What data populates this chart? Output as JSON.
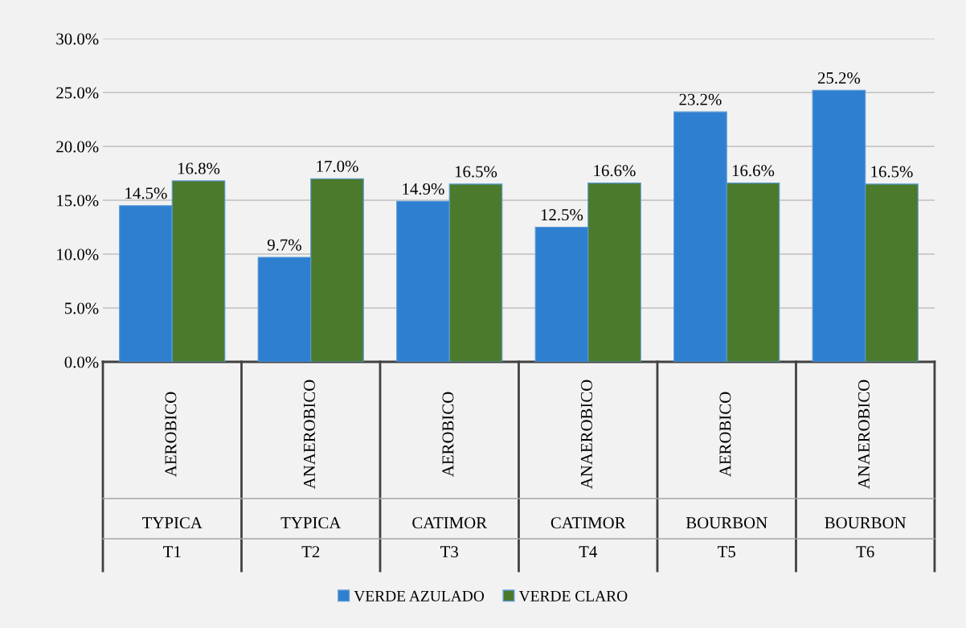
{
  "chart_data": {
    "type": "bar",
    "categories": [
      "AEROBICO\nTYPICA\nT1",
      "ANAEROBICO\nTYPICA\nT2",
      "AEROBICO\nCATIMOR\nT3",
      "ANAEROBICO\nCATIMOR\nT4",
      "AEROBICO\nBOURBON\nT5",
      "ANAEROBICO\nBOURBON\nT6"
    ],
    "series": [
      {
        "name": "VERDE AZULADO",
        "color": "#2f7fd0",
        "values": [
          14.5,
          9.7,
          14.9,
          12.5,
          23.2,
          25.2
        ],
        "value_labels": [
          "14.5%",
          "9.7%",
          "14.9%",
          "12.5%",
          "23.2%",
          "25.2%"
        ]
      },
      {
        "name": "VERDE CLARO",
        "color": "#4b7a2c",
        "values": [
          16.8,
          17.0,
          16.5,
          16.6,
          16.6,
          16.5
        ],
        "value_labels": [
          "16.8%",
          "17.0%",
          "16.5%",
          "16.6%",
          "16.6%",
          "16.5%"
        ]
      }
    ],
    "ylim": [
      0,
      30
    ],
    "yticks": [
      {
        "value": 0,
        "label": "0.0%"
      },
      {
        "value": 5,
        "label": "5.0%"
      },
      {
        "value": 10,
        "label": "10.0%"
      },
      {
        "value": 15,
        "label": "15.0%"
      },
      {
        "value": 20,
        "label": "20.0%"
      },
      {
        "value": 25,
        "label": "25.0%"
      },
      {
        "value": 30,
        "label": "30.0%"
      }
    ],
    "grid": "y",
    "legend": "bottom"
  }
}
